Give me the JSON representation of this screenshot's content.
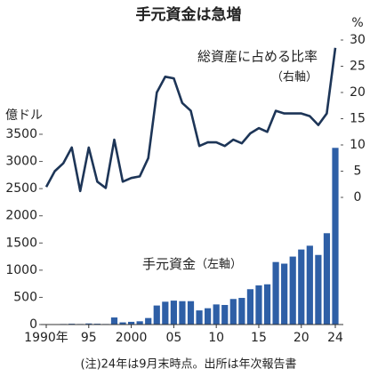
{
  "chart_data": {
    "type": "bar-line",
    "title": "手元資金は急増",
    "y_unit": "億ドル",
    "y2_unit": "%",
    "left_axis_note": "（左軸）",
    "right_axis_note": "（右軸）",
    "note": "(注)24年は9月末時点。出所は年次報告書",
    "categories": [
      "1990年",
      null,
      null,
      null,
      null,
      "95",
      null,
      null,
      null,
      null,
      "2000",
      null,
      null,
      null,
      null,
      "05",
      null,
      null,
      null,
      null,
      "10",
      null,
      null,
      null,
      null,
      "15",
      null,
      null,
      null,
      null,
      "20",
      null,
      null,
      null,
      "24"
    ],
    "series": [
      {
        "name": "手元資金",
        "color": "#2e5fa6",
        "axis": "y",
        "values": [
          5,
          5,
          10,
          15,
          10,
          20,
          15,
          10,
          130,
          40,
          50,
          60,
          120,
          350,
          420,
          440,
          430,
          430,
          260,
          300,
          370,
          360,
          470,
          490,
          650,
          720,
          740,
          1150,
          1120,
          1250,
          1380,
          1450,
          1280,
          1680,
          3250
        ]
      },
      {
        "name": "総資産に占める比率",
        "color": "#1d3557",
        "axis": "y2",
        "values": [
          2,
          5,
          6.5,
          9.5,
          1.2,
          9.5,
          3,
          1.8,
          11,
          3,
          3.7,
          4,
          7.5,
          20,
          23,
          22.7,
          18,
          16.5,
          9.8,
          10.5,
          10.5,
          9.8,
          11,
          10.3,
          12.2,
          13.2,
          12.5,
          16.5,
          16,
          16,
          16,
          15.5,
          13.8,
          16,
          28.5
        ]
      }
    ],
    "ylim": [
      0,
      3500
    ],
    "yticks": [
      0,
      500,
      1000,
      1500,
      2000,
      2500,
      3000,
      3500
    ],
    "y2lim": [
      0,
      30
    ],
    "y2ticks": [
      0,
      5,
      10,
      15,
      20,
      25,
      30
    ]
  }
}
